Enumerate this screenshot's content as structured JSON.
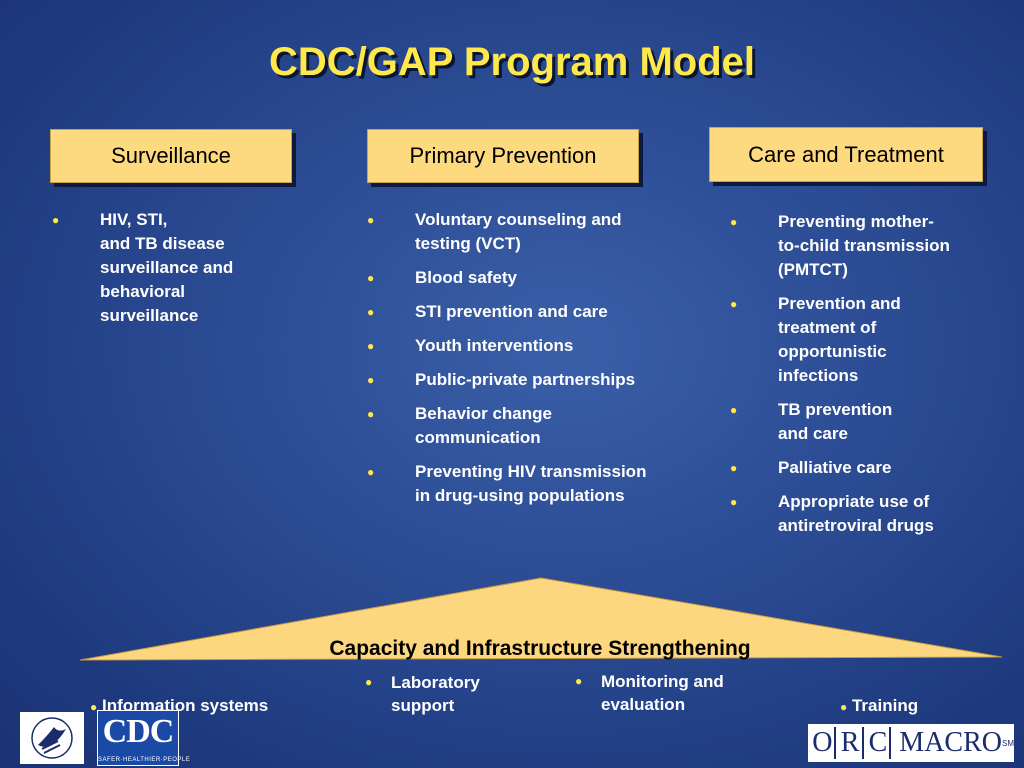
{
  "title": "CDC/GAP Program Model",
  "headers": {
    "surveillance": "Surveillance",
    "primary_prevention": "Primary Prevention",
    "care_treatment": "Care and Treatment"
  },
  "surveillance_items": [
    "HIV, STI,\nand TB disease\nsurveillance and\nbehavioral\nsurveillance"
  ],
  "prevention_items": [
    "Voluntary counseling and\ntesting (VCT)",
    "Blood safety",
    "STI prevention and care",
    "Youth interventions",
    "Public-private partnerships",
    "Behavior change\ncommunication",
    "Preventing HIV  transmission\nin drug-using populations"
  ],
  "care_items": [
    "Preventing mother-\nto-child transmission\n(PMTCT)",
    "Prevention and\ntreatment of\nopportunistic\ninfections",
    "TB prevention\nand care",
    "Palliative care",
    "Appropriate use of\nantiretroviral drugs"
  ],
  "capacity": {
    "title": "Capacity and Infrastructure Strengthening",
    "items": [
      "Information systems",
      "Laboratory\nsupport",
      "Monitoring and\nevaluation",
      "Training"
    ]
  },
  "bullet_glyph": "●",
  "logos": {
    "cdc_text": "CDC",
    "cdc_tagline": "SAFER·HEALTHIER·PEOPLE",
    "orc_letters": [
      "O",
      "R",
      "C"
    ],
    "macro": "MACRO",
    "sm": "SM"
  },
  "colors": {
    "background": "#2a4a92",
    "title": "#ffe84a",
    "box_fill": "#fdd980",
    "triangle": "#fdd680"
  }
}
